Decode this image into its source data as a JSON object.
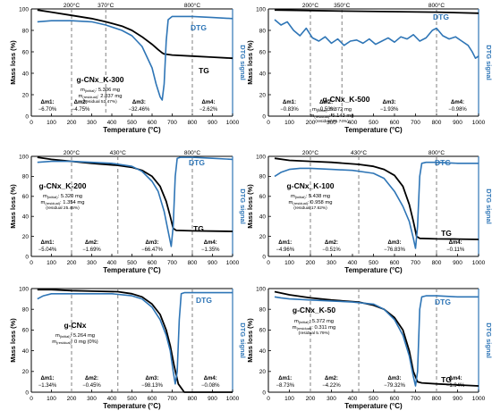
{
  "chart_data": [
    {
      "type": "line",
      "name": "g-CNx_K-300",
      "info": {
        "m_initial": "5.306 mg",
        "m_residual": "2.837 mg",
        "residual_note": "(residual 53.47%)"
      },
      "xlabel": "Temperature (°C)",
      "ylabel": "Mass loss (%)",
      "y2label": "DTG signal",
      "xlim": [
        0,
        1000
      ],
      "ylim": [
        0,
        100
      ],
      "xticks": [
        0,
        100,
        200,
        300,
        400,
        500,
        600,
        700,
        800,
        900,
        1000
      ],
      "yticks": [
        0,
        20,
        40,
        60,
        80,
        100
      ],
      "vlines": [
        200,
        370,
        800
      ],
      "vline_labels": [
        "200°C",
        "370°C",
        "800°C"
      ],
      "series": [
        {
          "name": "TG",
          "x": [
            30,
            100,
            200,
            300,
            370,
            450,
            500,
            550,
            600,
            630,
            650,
            660,
            700,
            800,
            900,
            1000
          ],
          "y": [
            99,
            97,
            94,
            91,
            88,
            84,
            80,
            74,
            67,
            62,
            59,
            58,
            57,
            56,
            55,
            54
          ]
        },
        {
          "name": "DTG",
          "x": [
            30,
            100,
            200,
            300,
            370,
            450,
            500,
            550,
            600,
            620,
            640,
            650,
            660,
            670,
            680,
            700,
            800,
            900,
            1000
          ],
          "y": [
            88,
            89,
            89,
            88,
            85,
            80,
            75,
            65,
            45,
            30,
            18,
            15,
            30,
            70,
            90,
            93,
            93,
            92,
            91
          ]
        }
      ],
      "deltas": [
        {
          "label": "Δm1:",
          "value": "−6.70%",
          "x": 0.08
        },
        {
          "label": "Δm2:",
          "value": "−4.75%",
          "x": 0.245
        },
        {
          "label": "Δm3:",
          "value": "−32.46%",
          "x": 0.535
        },
        {
          "label": "Δm4:",
          "value": "−2.62%",
          "x": 0.88
        }
      ]
    },
    {
      "type": "line",
      "name": "g-CNx_K-500",
      "info": {
        "m_initial": "5.372 mg",
        "m_residual": "5.143 mg",
        "residual_note": "(residual 95.74%)"
      },
      "xlabel": "Temperature (°C)",
      "ylabel": "Mass loss (%)",
      "y2label": "DTG signal",
      "xlim": [
        0,
        1000
      ],
      "ylim": [
        0,
        100
      ],
      "xticks": [
        0,
        100,
        200,
        300,
        400,
        500,
        600,
        700,
        800,
        900,
        1000
      ],
      "yticks": [
        0,
        20,
        40,
        60,
        80,
        100
      ],
      "vlines": [
        200,
        350,
        800
      ],
      "vline_labels": [
        "200°C",
        "350°C",
        "800°C"
      ],
      "series": [
        {
          "name": "TG",
          "x": [
            30,
            200,
            350,
            800,
            1000
          ],
          "y": [
            99,
            98.5,
            98,
            97,
            96
          ]
        },
        {
          "name": "DTG",
          "x": [
            30,
            60,
            90,
            120,
            150,
            180,
            210,
            240,
            270,
            300,
            330,
            360,
            390,
            420,
            450,
            480,
            510,
            540,
            570,
            600,
            630,
            660,
            690,
            720,
            750,
            780,
            800,
            830,
            860,
            890,
            920,
            950,
            970,
            985,
            1000
          ],
          "y": [
            90,
            85,
            88,
            80,
            75,
            82,
            73,
            70,
            74,
            68,
            72,
            66,
            70,
            71,
            68,
            72,
            67,
            70,
            73,
            69,
            74,
            72,
            76,
            70,
            73,
            80,
            82,
            75,
            72,
            74,
            70,
            66,
            60,
            54,
            56
          ]
        }
      ],
      "deltas": [
        {
          "label": "Δm1:",
          "value": "−0.83%",
          "x": 0.1
        },
        {
          "label": "Δm2:",
          "value": "−0.53%",
          "x": 0.275
        },
        {
          "label": "Δm3:",
          "value": "−1.93%",
          "x": 0.575
        },
        {
          "label": "Δm4:",
          "value": "−0.98%",
          "x": 0.9
        }
      ]
    },
    {
      "type": "line",
      "name": "g-CNx_K-200",
      "info": {
        "m_initial": "5.320 mg",
        "m_residual": "1.354 mg",
        "residual_note": "(residual 25.45%)"
      },
      "xlabel": "Temperature (°C)",
      "ylabel": "Mass loss (%)",
      "y2label": "DTG signal",
      "xlim": [
        0,
        1000
      ],
      "ylim": [
        0,
        100
      ],
      "xticks": [
        0,
        100,
        200,
        300,
        400,
        500,
        600,
        700,
        800,
        900,
        1000
      ],
      "yticks": [
        0,
        20,
        40,
        60,
        80,
        100
      ],
      "vlines": [
        200,
        430,
        800
      ],
      "vline_labels": [
        "200°C",
        "430°C",
        "800°C"
      ],
      "series": [
        {
          "name": "TG",
          "x": [
            30,
            100,
            200,
            300,
            430,
            500,
            550,
            600,
            640,
            670,
            690,
            705,
            720,
            800,
            900,
            1000
          ],
          "y": [
            99,
            97,
            95,
            93,
            91,
            89,
            86,
            80,
            70,
            55,
            40,
            28,
            26,
            25.5,
            25.3,
            25
          ]
        },
        {
          "name": "DTG",
          "x": [
            30,
            100,
            200,
            300,
            400,
            500,
            550,
            600,
            630,
            660,
            680,
            695,
            705,
            715,
            725,
            740,
            800,
            900,
            1000
          ],
          "y": [
            94,
            95,
            95,
            94,
            93,
            90,
            85,
            75,
            65,
            45,
            25,
            10,
            30,
            80,
            98,
            99,
            99,
            98,
            97
          ]
        }
      ],
      "deltas": [
        {
          "label": "Δm1:",
          "value": "−5.04%",
          "x": 0.08
        },
        {
          "label": "Δm2:",
          "value": "−1.69%",
          "x": 0.3
        },
        {
          "label": "Δm3:",
          "value": "−66.47%",
          "x": 0.6
        },
        {
          "label": "Δm4:",
          "value": "−1.35%",
          "x": 0.89
        }
      ]
    },
    {
      "type": "line",
      "name": "g-CNx_K-100",
      "info": {
        "m_initial": "5.438 mg",
        "m_residual": "0.958 mg",
        "residual_note": "(residual 17.62%)"
      },
      "xlabel": "Temperature (°C)",
      "ylabel": "Mass loss (%)",
      "y2label": "DTG signal",
      "xlim": [
        0,
        1000
      ],
      "ylim": [
        0,
        100
      ],
      "xticks": [
        0,
        100,
        200,
        300,
        400,
        500,
        600,
        700,
        800,
        900,
        1000
      ],
      "yticks": [
        0,
        20,
        40,
        60,
        80,
        100
      ],
      "vlines": [
        200,
        430,
        800
      ],
      "vline_labels": [
        "200°C",
        "430°C",
        "800°C"
      ],
      "series": [
        {
          "name": "TG",
          "x": [
            30,
            100,
            200,
            300,
            430,
            500,
            550,
            600,
            640,
            670,
            690,
            705,
            720,
            800,
            900,
            1000
          ],
          "y": [
            98,
            96,
            95,
            94,
            92,
            90,
            87,
            81,
            70,
            52,
            35,
            20,
            18,
            17.5,
            17.3,
            17
          ]
        },
        {
          "name": "DTG",
          "x": [
            30,
            60,
            100,
            150,
            200,
            300,
            400,
            500,
            550,
            600,
            640,
            670,
            690,
            700,
            710,
            720,
            730,
            750,
            800,
            900,
            1000
          ],
          "y": [
            80,
            84,
            87,
            88,
            88,
            87,
            86,
            83,
            78,
            65,
            50,
            35,
            18,
            8,
            30,
            80,
            93,
            94,
            94,
            93,
            93
          ]
        }
      ],
      "deltas": [
        {
          "label": "Δm1:",
          "value": "−4.96%",
          "x": 0.08
        },
        {
          "label": "Δm2:",
          "value": "−0.51%",
          "x": 0.3
        },
        {
          "label": "Δm3:",
          "value": "−76.83%",
          "x": 0.6
        },
        {
          "label": "Δm4:",
          "value": "−0.11%",
          "x": 0.89
        }
      ]
    },
    {
      "type": "line",
      "name": "g-CNx",
      "info": {
        "m_initial": "5.264 mg",
        "m_residual": "0 mg (0%)",
        "residual_note": ""
      },
      "xlabel": "Temperature (°C)",
      "ylabel": "Mass loss (%)",
      "y2label": "DTG signal",
      "xlim": [
        0,
        1000
      ],
      "ylim": [
        0,
        100
      ],
      "xticks": [
        0,
        100,
        200,
        300,
        400,
        500,
        600,
        700,
        800,
        900,
        1000
      ],
      "yticks": [
        0,
        20,
        40,
        60,
        80,
        100
      ],
      "vlines": [
        200,
        430,
        800
      ],
      "vline_labels": [],
      "series": [
        {
          "name": "TG",
          "x": [
            30,
            100,
            200,
            300,
            430,
            500,
            550,
            600,
            640,
            670,
            690,
            710,
            730,
            760,
            800,
            900,
            1000
          ],
          "y": [
            99,
            99,
            98,
            97.5,
            97,
            95,
            92,
            85,
            75,
            60,
            45,
            25,
            8,
            0,
            0,
            0,
            0
          ]
        },
        {
          "name": "DTG",
          "x": [
            30,
            60,
            100,
            200,
            300,
            400,
            500,
            550,
            600,
            640,
            670,
            690,
            705,
            715,
            725,
            735,
            745,
            760,
            800,
            900,
            1000
          ],
          "y": [
            90,
            93,
            95,
            95,
            95,
            95,
            93,
            90,
            82,
            70,
            55,
            40,
            20,
            8,
            20,
            70,
            95,
            96,
            96,
            96,
            96
          ]
        }
      ],
      "deltas": [
        {
          "label": "Δm1:",
          "value": "−1.34%",
          "x": 0.08
        },
        {
          "label": "Δm2:",
          "value": "−0.45%",
          "x": 0.3
        },
        {
          "label": "Δm3:",
          "value": "−98.13%",
          "x": 0.6
        },
        {
          "label": "Δm4:",
          "value": "−0.08%",
          "x": 0.89
        }
      ]
    },
    {
      "type": "line",
      "name": "g-CNx_K-50",
      "info": {
        "m_initial": "5.372 mg",
        "m_residual": "0.311 mg",
        "residual_note": "(residual 5.79%)"
      },
      "xlabel": "Temperature (°C)",
      "ylabel": "Mass loss (%)",
      "y2label": "DTG signal",
      "xlim": [
        0,
        1000
      ],
      "ylim": [
        0,
        100
      ],
      "xticks": [
        0,
        100,
        200,
        300,
        400,
        500,
        600,
        700,
        800,
        900,
        1000
      ],
      "yticks": [
        0,
        20,
        40,
        60,
        80,
        100
      ],
      "vlines": [
        200,
        430,
        800
      ],
      "vline_labels": [],
      "series": [
        {
          "name": "TG",
          "x": [
            30,
            100,
            200,
            300,
            430,
            500,
            550,
            600,
            640,
            670,
            690,
            710,
            730,
            800,
            900,
            1000
          ],
          "y": [
            97,
            94,
            91,
            89,
            87,
            84,
            80,
            72,
            60,
            40,
            20,
            10,
            9,
            8,
            7,
            6
          ]
        },
        {
          "name": "DTG",
          "x": [
            30,
            60,
            100,
            200,
            300,
            400,
            500,
            550,
            600,
            640,
            670,
            690,
            700,
            710,
            720,
            730,
            750,
            800,
            900,
            1000
          ],
          "y": [
            92,
            91,
            90,
            89,
            88,
            87,
            85,
            80,
            70,
            55,
            35,
            15,
            6,
            20,
            80,
            92,
            93,
            93,
            92,
            92
          ]
        }
      ],
      "deltas": [
        {
          "label": "Δm1:",
          "value": "−8.73%",
          "x": 0.08
        },
        {
          "label": "Δm2:",
          "value": "−4.22%",
          "x": 0.3
        },
        {
          "label": "Δm3:",
          "value": "−79.32%",
          "x": 0.6
        },
        {
          "label": "Δm4:",
          "value": "−1.94%",
          "x": 0.89
        }
      ]
    }
  ],
  "colors": {
    "tg": "#000000",
    "dtg": "#2e75b6",
    "vline": "#808080",
    "axis_right": "#2e75b6"
  }
}
